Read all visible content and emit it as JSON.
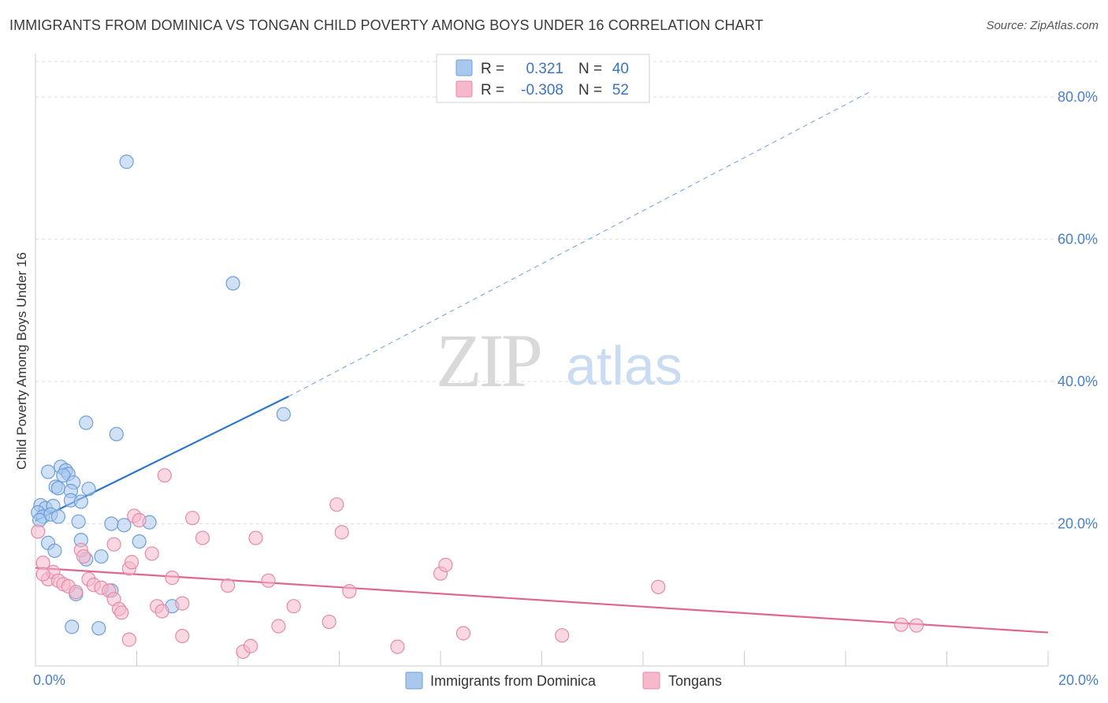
{
  "title": "IMMIGRANTS FROM DOMINICA VS TONGAN CHILD POVERTY AMONG BOYS UNDER 16 CORRELATION CHART",
  "source": "Source: ZipAtlas.com",
  "watermark": {
    "zip": "ZIP",
    "atlas": "atlas"
  },
  "colors": {
    "blue_fill": "#aac8ee",
    "blue_stroke": "#6c9fd8",
    "blue_line": "#2e75d0",
    "pink_fill": "#f6b8cb",
    "pink_stroke": "#e58aaa",
    "pink_line": "#e06591",
    "grid": "#dddddd",
    "tick": "#4a7fc9"
  },
  "legend": {
    "rows": [
      {
        "r_label": "R =",
        "r_value": "0.321",
        "n_label": "N =",
        "n_value": "40",
        "series": "blue"
      },
      {
        "r_label": "R =",
        "r_value": "-0.308",
        "n_label": "N =",
        "n_value": "52",
        "series": "pink"
      }
    ]
  },
  "chart_data": {
    "type": "scatter",
    "title": "IMMIGRANTS FROM DOMINICA VS TONGAN CHILD POVERTY AMONG BOYS UNDER 16 CORRELATION CHART",
    "xlabel": "",
    "ylabel": "Child Poverty Among Boys Under 16",
    "xlim": [
      0,
      20
    ],
    "ylim": [
      0,
      85
    ],
    "x_ticks": [
      {
        "value": 0,
        "label": "0.0%"
      },
      {
        "value": 20,
        "label": "20.0%"
      }
    ],
    "y_ticks": [
      {
        "value": 20,
        "label": "20.0%"
      },
      {
        "value": 40,
        "label": "40.0%"
      },
      {
        "value": 60,
        "label": "60.0%"
      },
      {
        "value": 80,
        "label": "80.0%"
      }
    ],
    "grid": true,
    "legend_position": "top-center",
    "series": [
      {
        "name": "Immigrants from Dominica",
        "color": "blue",
        "R": 0.321,
        "N": 40,
        "trend": {
          "x_start": 0,
          "y_start": 20.4,
          "x_solid_end": 5.0,
          "y_solid_end": 37.9,
          "x_dash_end": 16.5,
          "y_dash_end": 80.8
        },
        "points": [
          [
            1.8,
            70.9
          ],
          [
            3.9,
            53.8
          ],
          [
            1.0,
            34.2
          ],
          [
            1.6,
            32.6
          ],
          [
            4.9,
            35.4
          ],
          [
            0.25,
            27.3
          ],
          [
            0.5,
            28.0
          ],
          [
            0.6,
            27.5
          ],
          [
            0.65,
            27.0
          ],
          [
            0.55,
            26.8
          ],
          [
            0.4,
            25.2
          ],
          [
            0.75,
            25.8
          ],
          [
            0.45,
            25.0
          ],
          [
            0.7,
            24.6
          ],
          [
            1.05,
            24.9
          ],
          [
            0.1,
            22.6
          ],
          [
            0.2,
            22.2
          ],
          [
            0.35,
            22.5
          ],
          [
            0.7,
            23.3
          ],
          [
            0.9,
            23.1
          ],
          [
            0.05,
            21.6
          ],
          [
            0.15,
            21.0
          ],
          [
            0.3,
            21.3
          ],
          [
            0.08,
            20.5
          ],
          [
            0.45,
            21.0
          ],
          [
            0.85,
            20.3
          ],
          [
            1.5,
            20.0
          ],
          [
            1.75,
            19.8
          ],
          [
            2.25,
            20.2
          ],
          [
            0.25,
            17.3
          ],
          [
            0.9,
            17.7
          ],
          [
            2.05,
            17.5
          ],
          [
            0.38,
            16.2
          ],
          [
            1.3,
            15.4
          ],
          [
            1.0,
            15.0
          ],
          [
            1.5,
            10.6
          ],
          [
            0.8,
            10.1
          ],
          [
            2.7,
            8.4
          ],
          [
            0.72,
            5.5
          ],
          [
            1.25,
            5.3
          ]
        ]
      },
      {
        "name": "Tongans",
        "color": "pink",
        "R": -0.308,
        "N": 52,
        "trend": {
          "x_start": 0,
          "y_start": 13.8,
          "x_end": 20,
          "y_end": 4.7
        },
        "points": [
          [
            0.05,
            18.9
          ],
          [
            0.15,
            14.5
          ],
          [
            0.25,
            12.2
          ],
          [
            0.35,
            13.2
          ],
          [
            0.45,
            12.0
          ],
          [
            0.55,
            11.5
          ],
          [
            0.65,
            11.2
          ],
          [
            0.8,
            10.4
          ],
          [
            0.9,
            16.3
          ],
          [
            0.95,
            15.4
          ],
          [
            1.05,
            12.2
          ],
          [
            1.15,
            11.4
          ],
          [
            1.3,
            11.0
          ],
          [
            1.45,
            10.6
          ],
          [
            1.55,
            17.1
          ],
          [
            1.55,
            9.4
          ],
          [
            1.65,
            8.0
          ],
          [
            1.7,
            7.5
          ],
          [
            1.85,
            13.7
          ],
          [
            1.9,
            14.6
          ],
          [
            1.95,
            21.1
          ],
          [
            2.05,
            20.5
          ],
          [
            2.3,
            15.8
          ],
          [
            2.4,
            8.4
          ],
          [
            2.5,
            7.7
          ],
          [
            2.55,
            26.8
          ],
          [
            2.7,
            12.4
          ],
          [
            2.9,
            8.8
          ],
          [
            3.1,
            20.8
          ],
          [
            3.3,
            18.0
          ],
          [
            1.85,
            3.7
          ],
          [
            2.9,
            4.2
          ],
          [
            3.8,
            11.3
          ],
          [
            4.1,
            2.0
          ],
          [
            4.25,
            2.8
          ],
          [
            4.35,
            18.0
          ],
          [
            4.6,
            12.0
          ],
          [
            4.8,
            5.6
          ],
          [
            5.1,
            8.4
          ],
          [
            5.8,
            6.2
          ],
          [
            5.95,
            22.7
          ],
          [
            6.05,
            18.8
          ],
          [
            6.2,
            10.5
          ],
          [
            7.15,
            2.7
          ],
          [
            8.0,
            13.0
          ],
          [
            8.1,
            14.2
          ],
          [
            8.45,
            4.6
          ],
          [
            10.4,
            4.3
          ],
          [
            12.3,
            11.1
          ],
          [
            17.1,
            5.8
          ],
          [
            17.4,
            5.7
          ],
          [
            0.15,
            12.9
          ]
        ]
      }
    ]
  },
  "bottom_legend": [
    {
      "label": "Immigrants from Dominica",
      "series": "blue"
    },
    {
      "label": "Tongans",
      "series": "pink"
    }
  ]
}
